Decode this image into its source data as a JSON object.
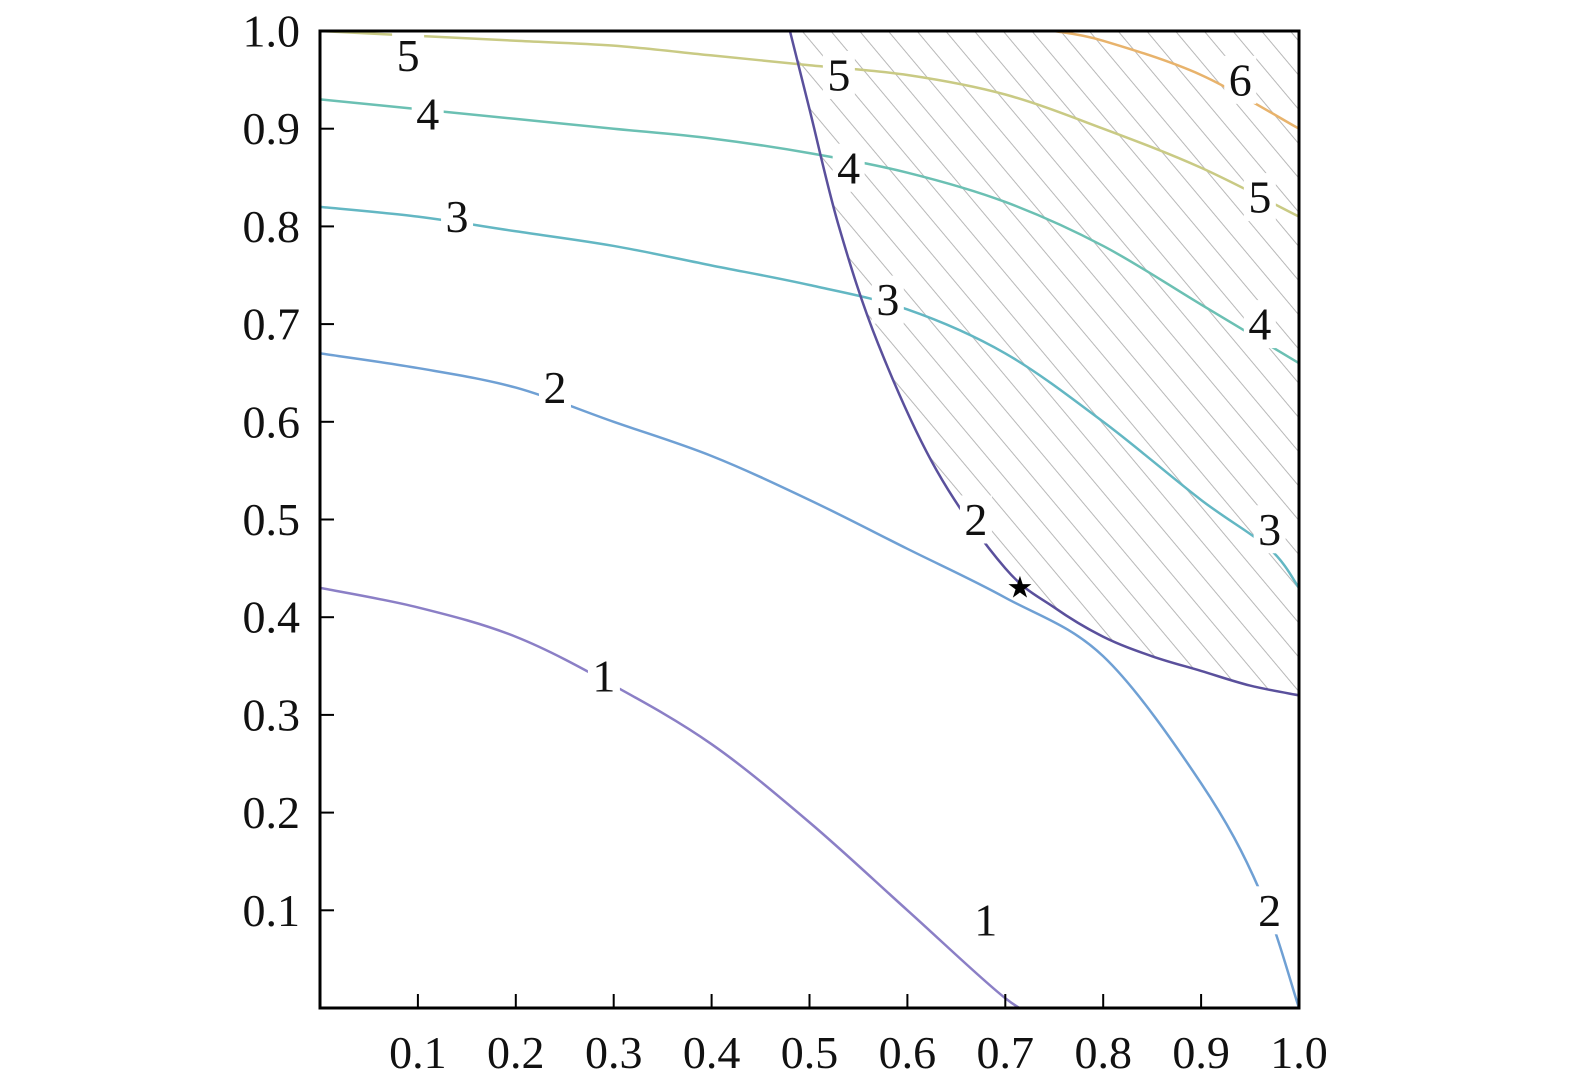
{
  "chart_data": {
    "type": "contour",
    "title": "",
    "xlabel": "",
    "ylabel": "",
    "xlim": [
      0.0,
      1.0
    ],
    "ylim": [
      0.0,
      1.0
    ],
    "x_ticks": [
      "0.1",
      "0.2",
      "0.3",
      "0.4",
      "0.5",
      "0.6",
      "0.7",
      "0.8",
      "0.9",
      "1.0"
    ],
    "y_ticks": [
      "0.1",
      "0.2",
      "0.3",
      "0.4",
      "0.5",
      "0.6",
      "0.7",
      "0.8",
      "0.9",
      "1.0"
    ],
    "grid": false,
    "contours": [
      {
        "level": "1",
        "color": "#8b7fc6",
        "points": [
          [
            0,
            0.43
          ],
          [
            0.1,
            0.41
          ],
          [
            0.2,
            0.38
          ],
          [
            0.3,
            0.33
          ],
          [
            0.4,
            0.27
          ],
          [
            0.5,
            0.19
          ],
          [
            0.6,
            0.1
          ],
          [
            0.7,
            0.01
          ],
          [
            0.74,
            -0.01
          ]
        ],
        "labels": [
          [
            0.29,
            0.34
          ],
          [
            0.68,
            0.09
          ]
        ]
      },
      {
        "level": "2",
        "color": "#6fa0d4",
        "points": [
          [
            0,
            0.67
          ],
          [
            0.1,
            0.655
          ],
          [
            0.2,
            0.635
          ],
          [
            0.3,
            0.6
          ],
          [
            0.4,
            0.565
          ],
          [
            0.5,
            0.52
          ],
          [
            0.6,
            0.47
          ],
          [
            0.7,
            0.42
          ],
          [
            0.8,
            0.36
          ],
          [
            0.9,
            0.23
          ],
          [
            0.96,
            0.12
          ],
          [
            1.0,
            0.0
          ]
        ],
        "labels": [
          [
            0.24,
            0.635
          ],
          [
            0.67,
            0.5
          ],
          [
            0.97,
            0.1
          ]
        ]
      },
      {
        "level": "3",
        "color": "#63b7c3",
        "points": [
          [
            0,
            0.82
          ],
          [
            0.1,
            0.81
          ],
          [
            0.2,
            0.795
          ],
          [
            0.3,
            0.78
          ],
          [
            0.4,
            0.76
          ],
          [
            0.5,
            0.74
          ],
          [
            0.6,
            0.715
          ],
          [
            0.7,
            0.67
          ],
          [
            0.8,
            0.6
          ],
          [
            0.9,
            0.52
          ],
          [
            0.97,
            0.47
          ],
          [
            1.0,
            0.43
          ]
        ],
        "labels": [
          [
            0.14,
            0.81
          ],
          [
            0.58,
            0.725
          ],
          [
            0.97,
            0.49
          ]
        ]
      },
      {
        "level": "4",
        "color": "#6bc0b3",
        "points": [
          [
            0,
            0.93
          ],
          [
            0.1,
            0.92
          ],
          [
            0.2,
            0.91
          ],
          [
            0.3,
            0.9
          ],
          [
            0.4,
            0.89
          ],
          [
            0.5,
            0.875
          ],
          [
            0.6,
            0.855
          ],
          [
            0.7,
            0.825
          ],
          [
            0.8,
            0.78
          ],
          [
            0.9,
            0.72
          ],
          [
            1.0,
            0.66
          ]
        ],
        "labels": [
          [
            0.11,
            0.915
          ],
          [
            0.54,
            0.86
          ],
          [
            0.96,
            0.7
          ]
        ]
      },
      {
        "level": "5",
        "color": "#c9ca84",
        "points": [
          [
            0,
            1.0
          ],
          [
            0.1,
            0.995
          ],
          [
            0.2,
            0.99
          ],
          [
            0.3,
            0.985
          ],
          [
            0.4,
            0.975
          ],
          [
            0.5,
            0.965
          ],
          [
            0.6,
            0.955
          ],
          [
            0.7,
            0.935
          ],
          [
            0.8,
            0.9
          ],
          [
            0.9,
            0.86
          ],
          [
            1.0,
            0.81
          ]
        ],
        "labels": [
          [
            0.09,
            0.975
          ],
          [
            0.53,
            0.955
          ],
          [
            0.96,
            0.83
          ]
        ]
      },
      {
        "level": "6",
        "color": "#e8b36c",
        "points": [
          [
            0.75,
            1.0
          ],
          [
            0.8,
            0.99
          ],
          [
            0.9,
            0.955
          ],
          [
            1.0,
            0.9
          ]
        ],
        "labels": [
          [
            0.94,
            0.95
          ]
        ]
      }
    ],
    "constraint_boundary": {
      "color": "#5a509c",
      "points": [
        [
          0.48,
          1.0
        ],
        [
          0.5,
          0.92
        ],
        [
          0.53,
          0.8
        ],
        [
          0.57,
          0.68
        ],
        [
          0.63,
          0.55
        ],
        [
          0.7,
          0.45
        ],
        [
          0.75,
          0.41
        ],
        [
          0.8,
          0.38
        ],
        [
          0.85,
          0.36
        ],
        [
          0.9,
          0.345
        ],
        [
          0.95,
          0.33
        ],
        [
          1.0,
          0.32
        ]
      ]
    },
    "feasible_region_hatched": true,
    "optimum_marker": {
      "x": 0.715,
      "y": 0.43,
      "symbol": "★"
    }
  }
}
